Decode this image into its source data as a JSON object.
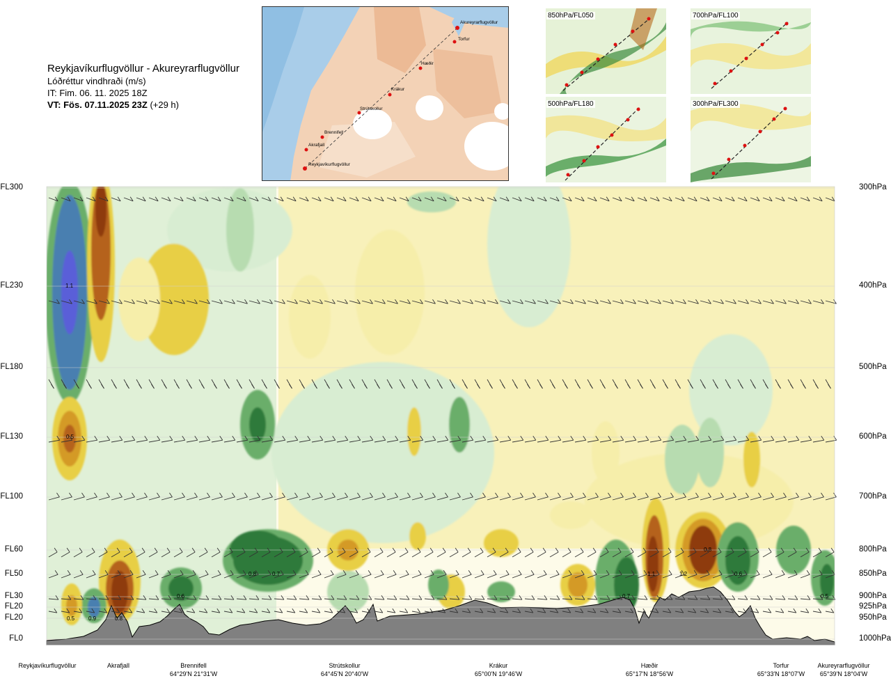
{
  "header": {
    "title": "Reykjavíkurflugvöllur - Akureyrarflugvöllur",
    "subtitle": "Lóðréttur vindhraði (m/s)",
    "issue_time": "IT: Fim. 06. 11. 2025 18Z",
    "valid_time": "VT: Fös. 07.11.2025 23Z",
    "lead_time": "(+29 h)"
  },
  "route_map": {
    "labels": [
      "Akureyrarflugvöllur",
      "Torfur",
      "Hæðir",
      "Krákur",
      "Strútskollur",
      "Brennifell",
      "Akrafjall",
      "Reykjavíkurflugvöllur"
    ]
  },
  "mini_maps": [
    "850hPa/FL050",
    "700hPa/FL100",
    "500hPa/FL180",
    "300hPa/FL300"
  ],
  "chart_data": {
    "type": "heatmap",
    "title": "Reykjavíkurflugvöllur - Akureyrarflugvöllur",
    "units": "m/s",
    "left_axis": [
      "FL300",
      "FL230",
      "FL180",
      "FL130",
      "FL100",
      "FL60",
      "FL50",
      "FL30",
      "FL20",
      "FL20",
      "FL0"
    ],
    "right_axis": [
      "300hPa",
      "400hPa",
      "500hPa",
      "600hPa",
      "700hPa",
      "800hPa",
      "850hPa",
      "900hPa",
      "925hPa",
      "950hPa",
      "1000hPa"
    ],
    "waypoints": [
      {
        "name": "Reykjavíkurflugvöllur",
        "coord": ""
      },
      {
        "name": "Akrafjall",
        "coord": ""
      },
      {
        "name": "Brennifell",
        "coord": "64°29'N 21°31'W"
      },
      {
        "name": "Strútskollur",
        "coord": "64°45'N 20°40'W"
      },
      {
        "name": "Krákur",
        "coord": "65°00'N 19°46'W"
      },
      {
        "name": "Hæðir",
        "coord": "65°17'N 18°56'W"
      },
      {
        "name": "Torfur",
        "coord": "65°33'N 18°07'W"
      },
      {
        "name": "Akureyrarflugvöllur",
        "coord": "65°39'N 18°04'W"
      }
    ],
    "annotations": [
      "1.1",
      "0.5",
      "0.8",
      "0.7",
      "0.6",
      "0.5",
      "0.9",
      "0.8",
      "1.1",
      "1.2",
      "0.7",
      "0.8",
      "0.6",
      "0.5"
    ],
    "colors": {
      "strong_up": "#5a5ed8",
      "up3": "#4a7fb0",
      "up2": "#2d7a3a",
      "up1": "#6aae6a",
      "weak_up": "#b7dcb0",
      "faint_up": "#d8edd2",
      "zero": "#fdfbe9",
      "weak_down": "#f6eeaa",
      "down1": "#e8cf45",
      "down2": "#d49a28",
      "down3": "#b5621a",
      "strong_down": "#8e3a0e",
      "terrain": "#808080"
    }
  }
}
